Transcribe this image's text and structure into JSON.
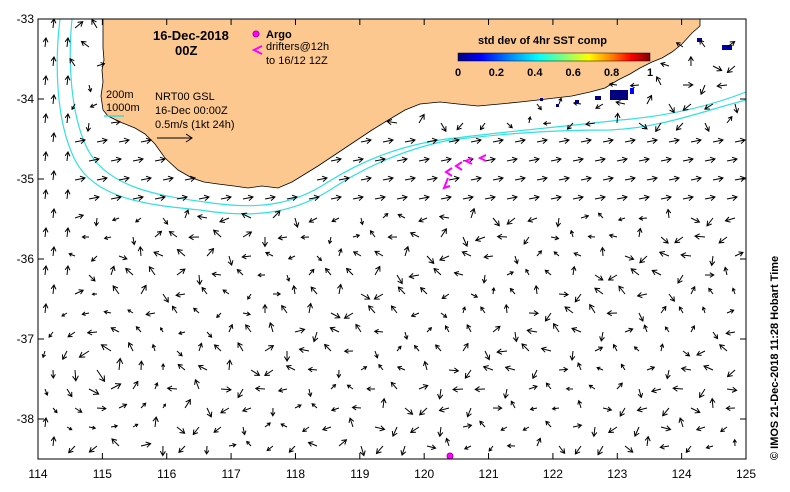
{
  "title": {
    "date": "16-Dec-2018",
    "time": "00Z"
  },
  "legend": {
    "argo_label": "Argo",
    "drifters_line1": "drifters@12h",
    "drifters_line2": "to 16/12 12Z",
    "argo_color": "#ff00ff",
    "drifter_color": "#ff00ff"
  },
  "isobaths": {
    "label_200": "200m",
    "label_1000": "1000m",
    "color": "#33e0e0"
  },
  "info": {
    "line1": "NRT00 GSL",
    "line2": "16-Dec 00:00Z",
    "line3": "0.5m/s (1kt 24h)"
  },
  "colorbar": {
    "title": "std dev of 4hr SST comp",
    "ticks": [
      "0",
      "0.2",
      "0.4",
      "0.6",
      "0.8",
      "1"
    ],
    "colors": [
      "#00007f",
      "#0000ff",
      "#007fff",
      "#00ffff",
      "#7fff7f",
      "#ffff00",
      "#ff7f00",
      "#ff0000",
      "#7f0000"
    ]
  },
  "axes": {
    "x_ticks": [
      "114",
      "115",
      "116",
      "117",
      "118",
      "119",
      "120",
      "121",
      "122",
      "123",
      "124",
      "125"
    ],
    "y_ticks": [
      "-33",
      "-34",
      "-35",
      "-36",
      "-37",
      "-38"
    ],
    "lon_range": [
      114,
      125
    ],
    "lat_range": [
      -38.5,
      -33
    ]
  },
  "land_color": "#fcc890",
  "credit": "© IMOS 21-Dec-2018 11:28 Hobart Time"
}
